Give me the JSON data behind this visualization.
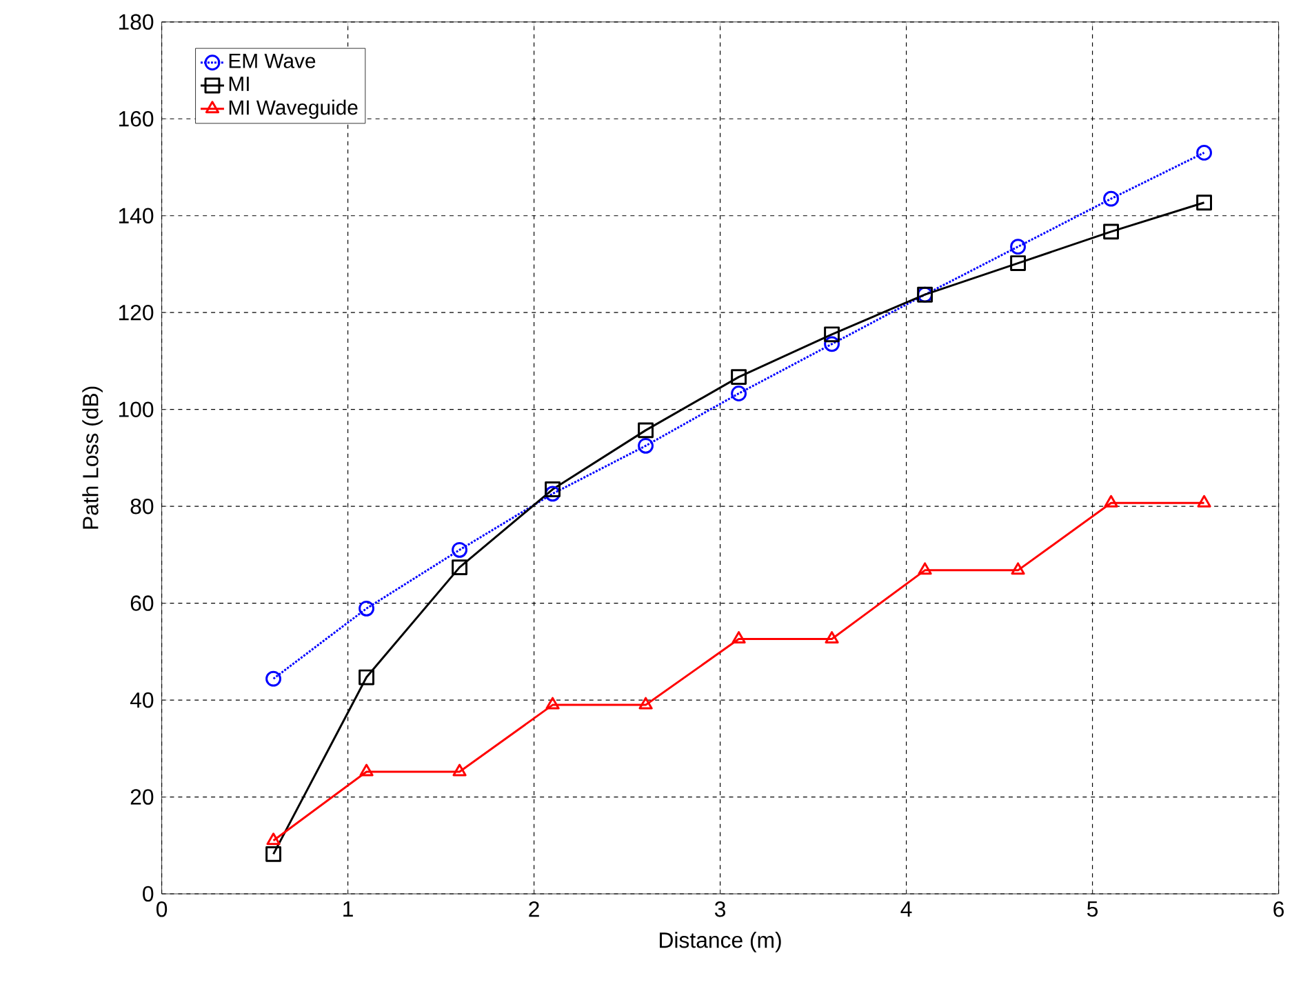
{
  "chart_data": {
    "type": "line",
    "xlabel": "Distance (m)",
    "ylabel": "Path Loss (dB)",
    "xlim": [
      0,
      6
    ],
    "ylim": [
      0,
      180
    ],
    "xticks": [
      0,
      1,
      2,
      3,
      4,
      5,
      6
    ],
    "yticks": [
      0,
      20,
      40,
      60,
      80,
      100,
      120,
      140,
      160,
      180
    ],
    "grid": true,
    "legend": "top left",
    "x": [
      0.6,
      1.1,
      1.6,
      2.1,
      2.6,
      3.1,
      3.6,
      4.1,
      4.6,
      5.1,
      5.6
    ],
    "series": [
      {
        "name": "EM Wave",
        "color": "#0000ff",
        "marker": "circle",
        "line_style": "dotted",
        "values": [
          44.4,
          58.9,
          71,
          82.6,
          92.5,
          103.3,
          113.5,
          123.7,
          133.6,
          143.5,
          153
        ]
      },
      {
        "name": "MI",
        "color": "#000000",
        "marker": "square",
        "line_style": "solid",
        "values": [
          8.2,
          44.7,
          67.4,
          83.5,
          95.7,
          106.7,
          115.5,
          123.7,
          130.2,
          136.7,
          142.7
        ]
      },
      {
        "name": "MI Waveguide",
        "color": "#ff0000",
        "marker": "triangle",
        "line_style": "solid",
        "values": [
          11,
          25.2,
          25.2,
          39,
          39,
          52.6,
          52.6,
          66.8,
          66.8,
          80.7,
          80.7
        ]
      }
    ]
  }
}
